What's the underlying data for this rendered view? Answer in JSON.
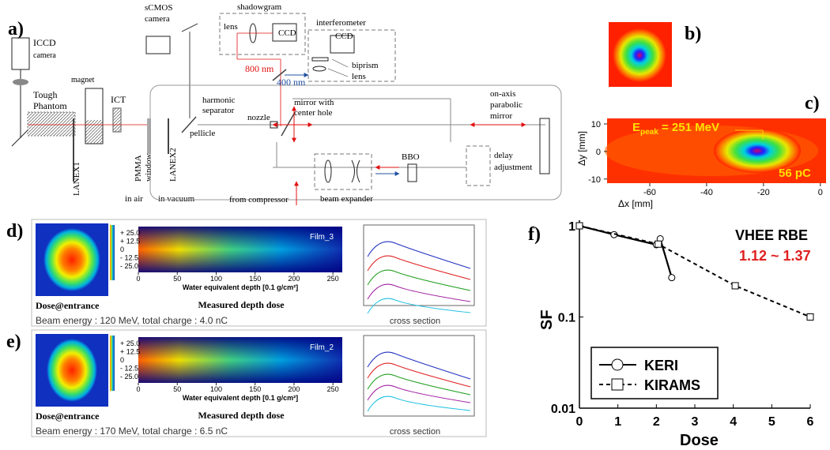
{
  "panel_a": {
    "label": "a)",
    "iccd": [
      "ICCD",
      "camera"
    ],
    "magnet": "magnet",
    "phantom": [
      "Tough",
      "Phantom"
    ],
    "ict": "ICT",
    "lanex1": "LANEX1",
    "pmma": [
      "PMMA",
      "window"
    ],
    "lanex2": "LANEX2",
    "pellicle": "pellicle",
    "in_air": "in air",
    "in_vacuum": "in vacuum",
    "scmos": [
      "sCMOS",
      "camera"
    ],
    "shadowgram": "shadowgram",
    "shadow_lens": "lens",
    "shadow_ccd": "CCD",
    "red_wavelength": "800 nm",
    "separator": [
      "harmonic",
      "separator"
    ],
    "blue_wavelength": "400 nm",
    "interferometer": "interferometer",
    "interf_ccd": "CCD",
    "biprism": "biprism",
    "interf_lens": "lens",
    "nozzle": "nozzle",
    "mirror_hole": [
      "mirror with",
      "center hole"
    ],
    "parabolic": [
      "on-axis",
      "parabolic",
      "mirror"
    ],
    "bbo": "BBO",
    "delay": [
      "delay",
      "adjustment"
    ],
    "expander": "beam expander",
    "compressor": "from compressor"
  },
  "panel_b": {
    "label": "b)"
  },
  "panel_c": {
    "label": "c)",
    "energy_symbol": "E",
    "energy_subscript": "peak",
    "energy_text": " = 251 MeV",
    "charge": "56 pC",
    "ylabel": "Δy [mm]",
    "xlabel": "Δx [mm]",
    "ylim": [
      -11.5,
      12
    ],
    "yticks": [
      10,
      0,
      -10
    ],
    "xlim": [
      -75,
      2
    ],
    "xticks": [
      -60,
      -40,
      -20,
      0
    ]
  },
  "panel_d": {
    "label": "d)",
    "film": "Film_3",
    "dose_entrance": "Dose@entrance",
    "title": "Measured depth dose",
    "xlabel": "Water equivalent depth [0.1 g/cm²]",
    "yticks": [
      "+ 25.0",
      "+ 12.5",
      "0",
      "- 12.5",
      "- 25.0"
    ],
    "xlim": [
      0,
      262
    ],
    "xticks": [
      0,
      50,
      100,
      150,
      200,
      250
    ],
    "beam": "Beam energy : 120 MeV, total charge : 4.0 nC",
    "cross_section": "cross section"
  },
  "panel_e": {
    "label": "e)",
    "film": "Film_2",
    "dose_entrance": "Dose@entrance",
    "title": "Measured depth dose",
    "xlabel": "Water equivalent depth [0.1 g/cm²]",
    "yticks": [
      "+ 25.0",
      "+ 12.5",
      "0",
      "- 12.5",
      "- 25.0"
    ],
    "xlim": [
      0,
      262
    ],
    "xticks": [
      0,
      50,
      100,
      150,
      200,
      250
    ],
    "beam": "Beam energy : 170 MeV, total charge : 6.5 nC",
    "cross_section": "cross section"
  },
  "panel_f": {
    "label": "f)",
    "type": "line",
    "annotation": "VHEE RBE",
    "rbe": "1.12 ~ 1.37",
    "ylabel": "SF",
    "xlabel": "Dose",
    "log_y": true,
    "xlim": [
      0,
      6
    ],
    "ylim": [
      0.01,
      1.15
    ],
    "xticks": [
      0,
      1,
      2,
      3,
      4,
      5,
      6
    ],
    "yticks": [
      0.01,
      0.1,
      1
    ],
    "series": [
      {
        "name": "KERI",
        "marker": "circle",
        "dash": "solid",
        "x": [
          0,
          0.9,
          2.0,
          2.1,
          2.4
        ],
        "values": [
          1,
          0.8,
          0.62,
          0.72,
          0.27
        ]
      },
      {
        "name": "KIRAMS",
        "marker": "square",
        "dash": "dashed",
        "x": [
          0,
          2.05,
          4.05,
          6
        ],
        "values": [
          1,
          0.63,
          0.22,
          0.1
        ]
      }
    ]
  }
}
